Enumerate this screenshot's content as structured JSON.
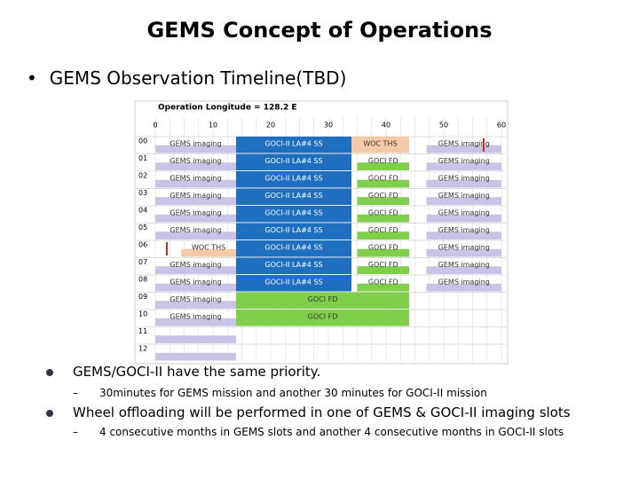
{
  "title": "GEMS Concept of Operations",
  "subtitle": "GEMS Observation Timeline(TBD)",
  "timeline": {
    "header": "Operation Longitude = 128.2 E",
    "minute_labels": [
      "0",
      "10",
      "20",
      "30",
      "40",
      "50",
      "60"
    ],
    "rows": [
      {
        "hour": "00",
        "segments": [
          "GEMS imaging",
          "GOCI-II LA#4 SS",
          "WOC THS",
          "GEMS imaging"
        ]
      },
      {
        "hour": "01",
        "segments": [
          "GEMS imaging",
          "GOCI-II LA#4 SS",
          "GOCI FD",
          "GEMS imaging"
        ]
      },
      {
        "hour": "02",
        "segments": [
          "GEMS imaging",
          "GOCI-II LA#4 SS",
          "GOCI FD",
          "GEMS imaging"
        ]
      },
      {
        "hour": "03",
        "segments": [
          "GEMS imaging",
          "GOCI-II LA#4 SS",
          "GOCI FD",
          "GEMS imaging"
        ]
      },
      {
        "hour": "04",
        "segments": [
          "GEMS imaging",
          "GOCI-II LA#4 SS",
          "GOCI FD",
          "GEMS imaging"
        ]
      },
      {
        "hour": "05",
        "segments": [
          "GEMS imaging",
          "GOCI-II LA#4 SS",
          "GOCI FD",
          "GEMS imaging"
        ]
      },
      {
        "hour": "06",
        "segments": [
          "WOC THS",
          "GOCI-II LA#4 SS",
          "GOCI FD",
          "GEMS imaging"
        ]
      },
      {
        "hour": "07",
        "segments": [
          "GEMS imaging",
          "GOCI-II LA#4 SS",
          "GOCI FD",
          "GEMS imaging"
        ]
      },
      {
        "hour": "08",
        "segments": [
          "GEMS imaging",
          "GOCI-II LA#4 SS",
          "GOCI FD",
          "GEMS imaging"
        ]
      },
      {
        "hour": "09",
        "segments": [
          "GEMS imaging",
          "GOCI FD"
        ]
      },
      {
        "hour": "10",
        "segments": [
          "GEMS imaging",
          "GOCI FD"
        ]
      },
      {
        "hour": "11",
        "segments": []
      },
      {
        "hour": "12",
        "segments": []
      }
    ]
  },
  "bullets": [
    {
      "text": "GEMS/GOCI-II have the same priority.",
      "sub": "30minutes for GEMS mission and another 30 minutes for GOCI-II mission"
    },
    {
      "text": "Wheel offloading will be performed in one of GEMS & GOCI-II imaging slots",
      "sub": "4 consecutive months in GEMS slots and another 4 consecutive months in GOCI-II slots"
    }
  ]
}
